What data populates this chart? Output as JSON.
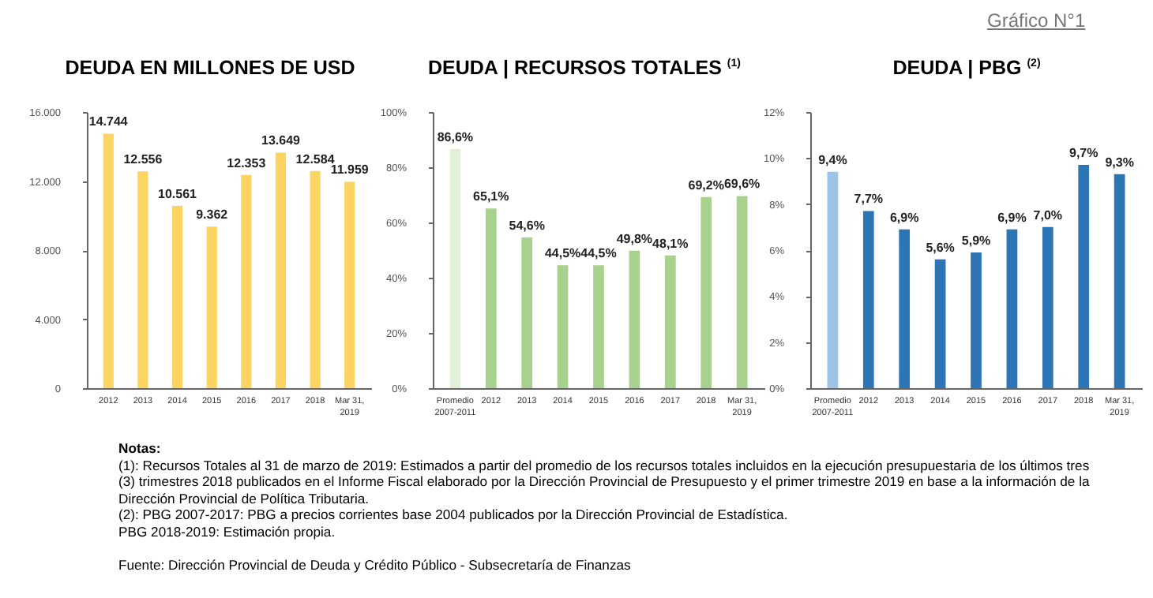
{
  "chart_data": [
    {
      "type": "bar",
      "title": "DEUDA EN MILLONES DE USD",
      "categories": [
        "2012",
        "2013",
        "2014",
        "2015",
        "2016",
        "2017",
        "2018",
        "Mar 31, 2019"
      ],
      "values": [
        14744,
        12556,
        10561,
        9362,
        12353,
        13649,
        12584,
        11959
      ],
      "value_labels": [
        "14.744",
        "12.556",
        "10.561",
        "9.362",
        "12.353",
        "13.649",
        "12.584",
        "11.959"
      ],
      "colors": [
        "#fcd462",
        "#fcd462",
        "#fcd462",
        "#fcd462",
        "#fcd462",
        "#fcd462",
        "#fcd462",
        "#fcd462"
      ],
      "ylim": [
        0,
        16000
      ],
      "yticks": [
        {
          "value": 0,
          "label": "0"
        },
        {
          "value": 4000,
          "label": "4.000"
        },
        {
          "value": 8000,
          "label": "8.000"
        },
        {
          "value": 12000,
          "label": "12.000"
        },
        {
          "value": 16000,
          "label": "16.000"
        }
      ]
    },
    {
      "type": "bar",
      "title": "DEUDA | RECURSOS TOTALES $^{(1)}$",
      "categories": [
        "Promedio 2007-2011",
        "2012",
        "2013",
        "2014",
        "2015",
        "2016",
        "2017",
        "2018",
        "Mar 31, 2019"
      ],
      "values": [
        86.6,
        65.1,
        54.6,
        44.5,
        44.5,
        49.8,
        48.1,
        69.2,
        69.6
      ],
      "value_labels": [
        "86,6%",
        "65,1%",
        "54,6%",
        "44,5%",
        "44,5%",
        "49,8%",
        "48,1%",
        "69,2%",
        "69,6%"
      ],
      "colors": [
        "#e2efd9",
        "#a9d18e",
        "#a9d18e",
        "#a9d18e",
        "#a9d18e",
        "#a9d18e",
        "#a9d18e",
        "#a9d18e",
        "#a9d18e"
      ],
      "ylim": [
        0,
        100
      ],
      "yticks": [
        {
          "value": 0,
          "label": "0%"
        },
        {
          "value": 20,
          "label": "20%"
        },
        {
          "value": 40,
          "label": "40%"
        },
        {
          "value": 60,
          "label": "60%"
        },
        {
          "value": 80,
          "label": "80%"
        },
        {
          "value": 100,
          "label": "100%"
        }
      ]
    },
    {
      "type": "bar",
      "title": "DEUDA | PBG $^{(2)}$",
      "categories": [
        "Promedio 2007-2011",
        "2012",
        "2013",
        "2014",
        "2015",
        "2016",
        "2017",
        "2018",
        "Mar 31, 2019"
      ],
      "values": [
        9.4,
        7.7,
        6.9,
        5.6,
        5.9,
        6.9,
        7.0,
        9.7,
        9.3
      ],
      "value_labels": [
        "9,4%",
        "7,7%",
        "6,9%",
        "5,6%",
        "5,9%",
        "6,9%",
        "7,0%",
        "9,7%",
        "9,3%"
      ],
      "colors": [
        "#9dc3e6",
        "#2e75b6",
        "#2e75b6",
        "#2e75b6",
        "#2e75b6",
        "#2e75b6",
        "#2e75b6",
        "#2e75b6",
        "#2e75b6"
      ],
      "ylim": [
        0,
        12
      ],
      "yticks": [
        {
          "value": 0,
          "label": "0%"
        },
        {
          "value": 2,
          "label": "2%"
        },
        {
          "value": 4,
          "label": "4%"
        },
        {
          "value": 6,
          "label": "6%"
        },
        {
          "value": 8,
          "label": "8%"
        },
        {
          "value": 10,
          "label": "10%"
        },
        {
          "value": 12,
          "label": "12%"
        }
      ]
    },
    {
      "type": "other",
      "title": "Gráfico N°1",
      "annotations": [
        "Notas:",
        "(1): Recursos Totales al 31 de marzo de 2019: Estimados a partir del promedio de los recursos totales incluidos en la ejecución presupuestaria de los últimos tres (3) trimestres 2018 publicados en el Informe Fiscal elaborado por la Dirección Provincial de Presupuesto y el primer trimestre 2019 en base a la información de la Dirección Provincial de Política Tributaria.",
        "(2): PBG 2007-2017: PBG a precios corrientes base 2004 publicados por la Dirección Provincial de Estadística.",
        "PBG 2018-2019: Estimación propia.",
        "Fuente: Dirección Provincial de Deuda y Crédito Público - Subsecretaría de Finanzas"
      ]
    }
  ]
}
